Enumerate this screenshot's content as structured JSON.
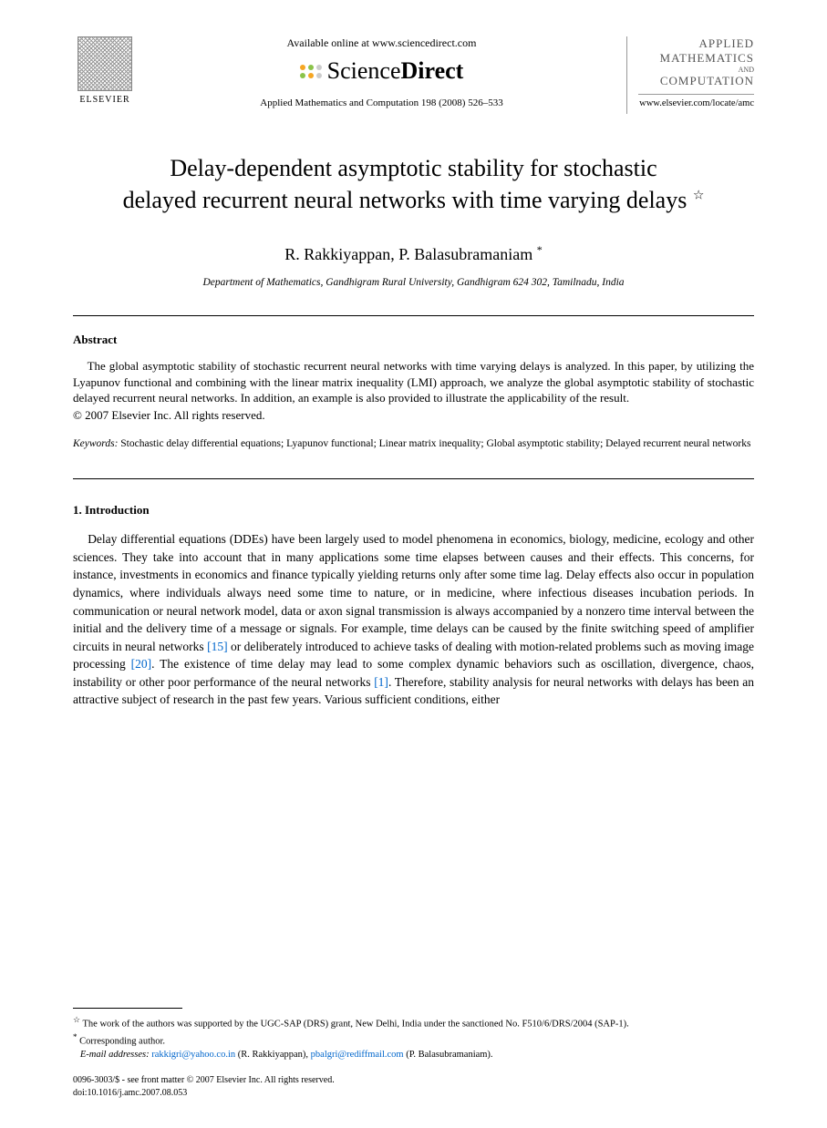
{
  "header": {
    "publisher_name": "ELSEVIER",
    "available_text": "Available online at www.sciencedirect.com",
    "sd_brand_light": "Science",
    "sd_brand_bold": "Direct",
    "sd_dot_colors": [
      "#f5a623",
      "#8bc34a",
      "#cccccc",
      "#8bc34a",
      "#f5a623",
      "#cccccc"
    ],
    "journal_ref": "Applied Mathematics and Computation 198 (2008) 526–533",
    "journal_box_line1": "APPLIED",
    "journal_box_line2": "MATHEMATICS",
    "journal_box_and": "AND",
    "journal_box_line3": "COMPUTATION",
    "journal_url": "www.elsevier.com/locate/amc"
  },
  "title": {
    "line1": "Delay-dependent asymptotic stability for stochastic",
    "line2": "delayed recurrent neural networks with time varying delays",
    "footnote_mark": "☆"
  },
  "authors": {
    "list": "R. Rakkiyappan, P. Balasubramaniam",
    "corr_mark": "*",
    "affiliation": "Department of Mathematics, Gandhigram Rural University, Gandhigram 624 302, Tamilnadu, India"
  },
  "abstract": {
    "heading": "Abstract",
    "body": "The global asymptotic stability of stochastic recurrent neural networks with time varying delays is analyzed. In this paper, by utilizing the Lyapunov functional and combining with the linear matrix inequality (LMI) approach, we analyze the global asymptotic stability of stochastic delayed recurrent neural networks. In addition, an example is also provided to illustrate the applicability of the result.",
    "copyright": "© 2007 Elsevier Inc. All rights reserved."
  },
  "keywords": {
    "label": "Keywords:",
    "text": "Stochastic delay differential equations; Lyapunov functional; Linear matrix inequality; Global asymptotic stability; Delayed recurrent neural networks"
  },
  "introduction": {
    "heading": "1. Introduction",
    "body_pre": "Delay differential equations (DDEs) have been largely used to model phenomena in economics, biology, medicine, ecology and other sciences. They take into account that in many applications some time elapses between causes and their effects. This concerns, for instance, investments in economics and finance typically yielding returns only after some time lag. Delay effects also occur in population dynamics, where individuals always need some time to nature, or in medicine, where infectious diseases incubation periods. In communication or neural network model, data or axon signal transmission is always accompanied by a nonzero time interval between the initial and the delivery time of a message or signals. For example, time delays can be caused by the finite switching speed of amplifier circuits in neural networks ",
    "ref1": "[15]",
    "body_mid1": " or deliberately introduced to achieve tasks of dealing with motion-related problems such as moving image processing ",
    "ref2": "[20]",
    "body_mid2": ". The existence of time delay may lead to some complex dynamic behaviors such as oscillation, divergence, chaos, instability or other poor performance of the neural networks ",
    "ref3": "[1]",
    "body_post": ". Therefore, stability analysis for neural networks with delays has been an attractive subject of research in the past few years. Various sufficient conditions, either"
  },
  "footnotes": {
    "funding_mark": "☆",
    "funding": "The work of the authors was supported by the UGC-SAP (DRS) grant, New Delhi, India under the sanctioned No. F510/6/DRS/2004 (SAP-1).",
    "corr_mark": "*",
    "corr_label": "Corresponding author.",
    "email_label": "E-mail addresses:",
    "email1": "rakkigri@yahoo.co.in",
    "email1_name": "(R. Rakkiyappan),",
    "email2": "pbalgri@rediffmail.com",
    "email2_name": "(P. Balasubramaniam).",
    "issn_line": "0096-3003/$ - see front matter © 2007 Elsevier Inc. All rights reserved.",
    "doi_line": "doi:10.1016/j.amc.2007.08.053"
  },
  "colors": {
    "link": "#0066cc",
    "text": "#000000",
    "background": "#ffffff"
  }
}
